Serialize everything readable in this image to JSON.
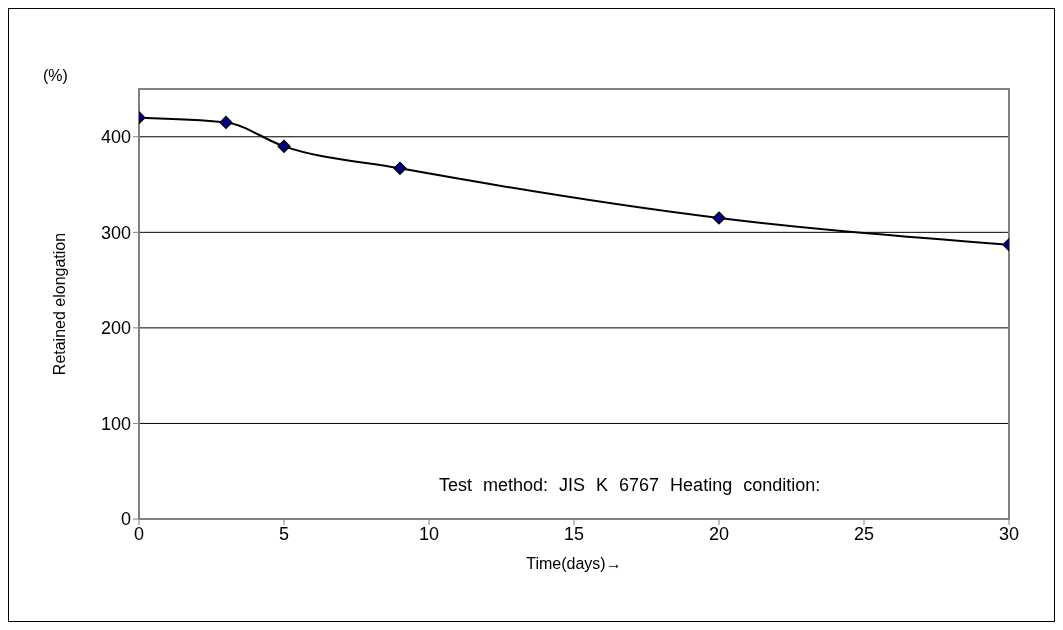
{
  "chart_data": {
    "type": "line",
    "xlabel": "Time(days)→",
    "ylabel": "Retained elongation",
    "annotations": [
      "(%)",
      "Test method: JIS K 6767 Heating condition:"
    ],
    "x": [
      0,
      3,
      5,
      9,
      20,
      30
    ],
    "series": [
      {
        "color": "#000080",
        "values": [
          420,
          415,
          390,
          367,
          315,
          287
        ]
      }
    ],
    "xlim": [
      0,
      30
    ],
    "xticks": [
      0,
      5,
      10,
      15,
      20,
      25,
      30
    ],
    "ylim": [
      0,
      450
    ],
    "yticks": [
      0,
      100,
      200,
      300,
      400
    ],
    "grid": "y",
    "marker": "diamond",
    "line_style": "solid"
  }
}
